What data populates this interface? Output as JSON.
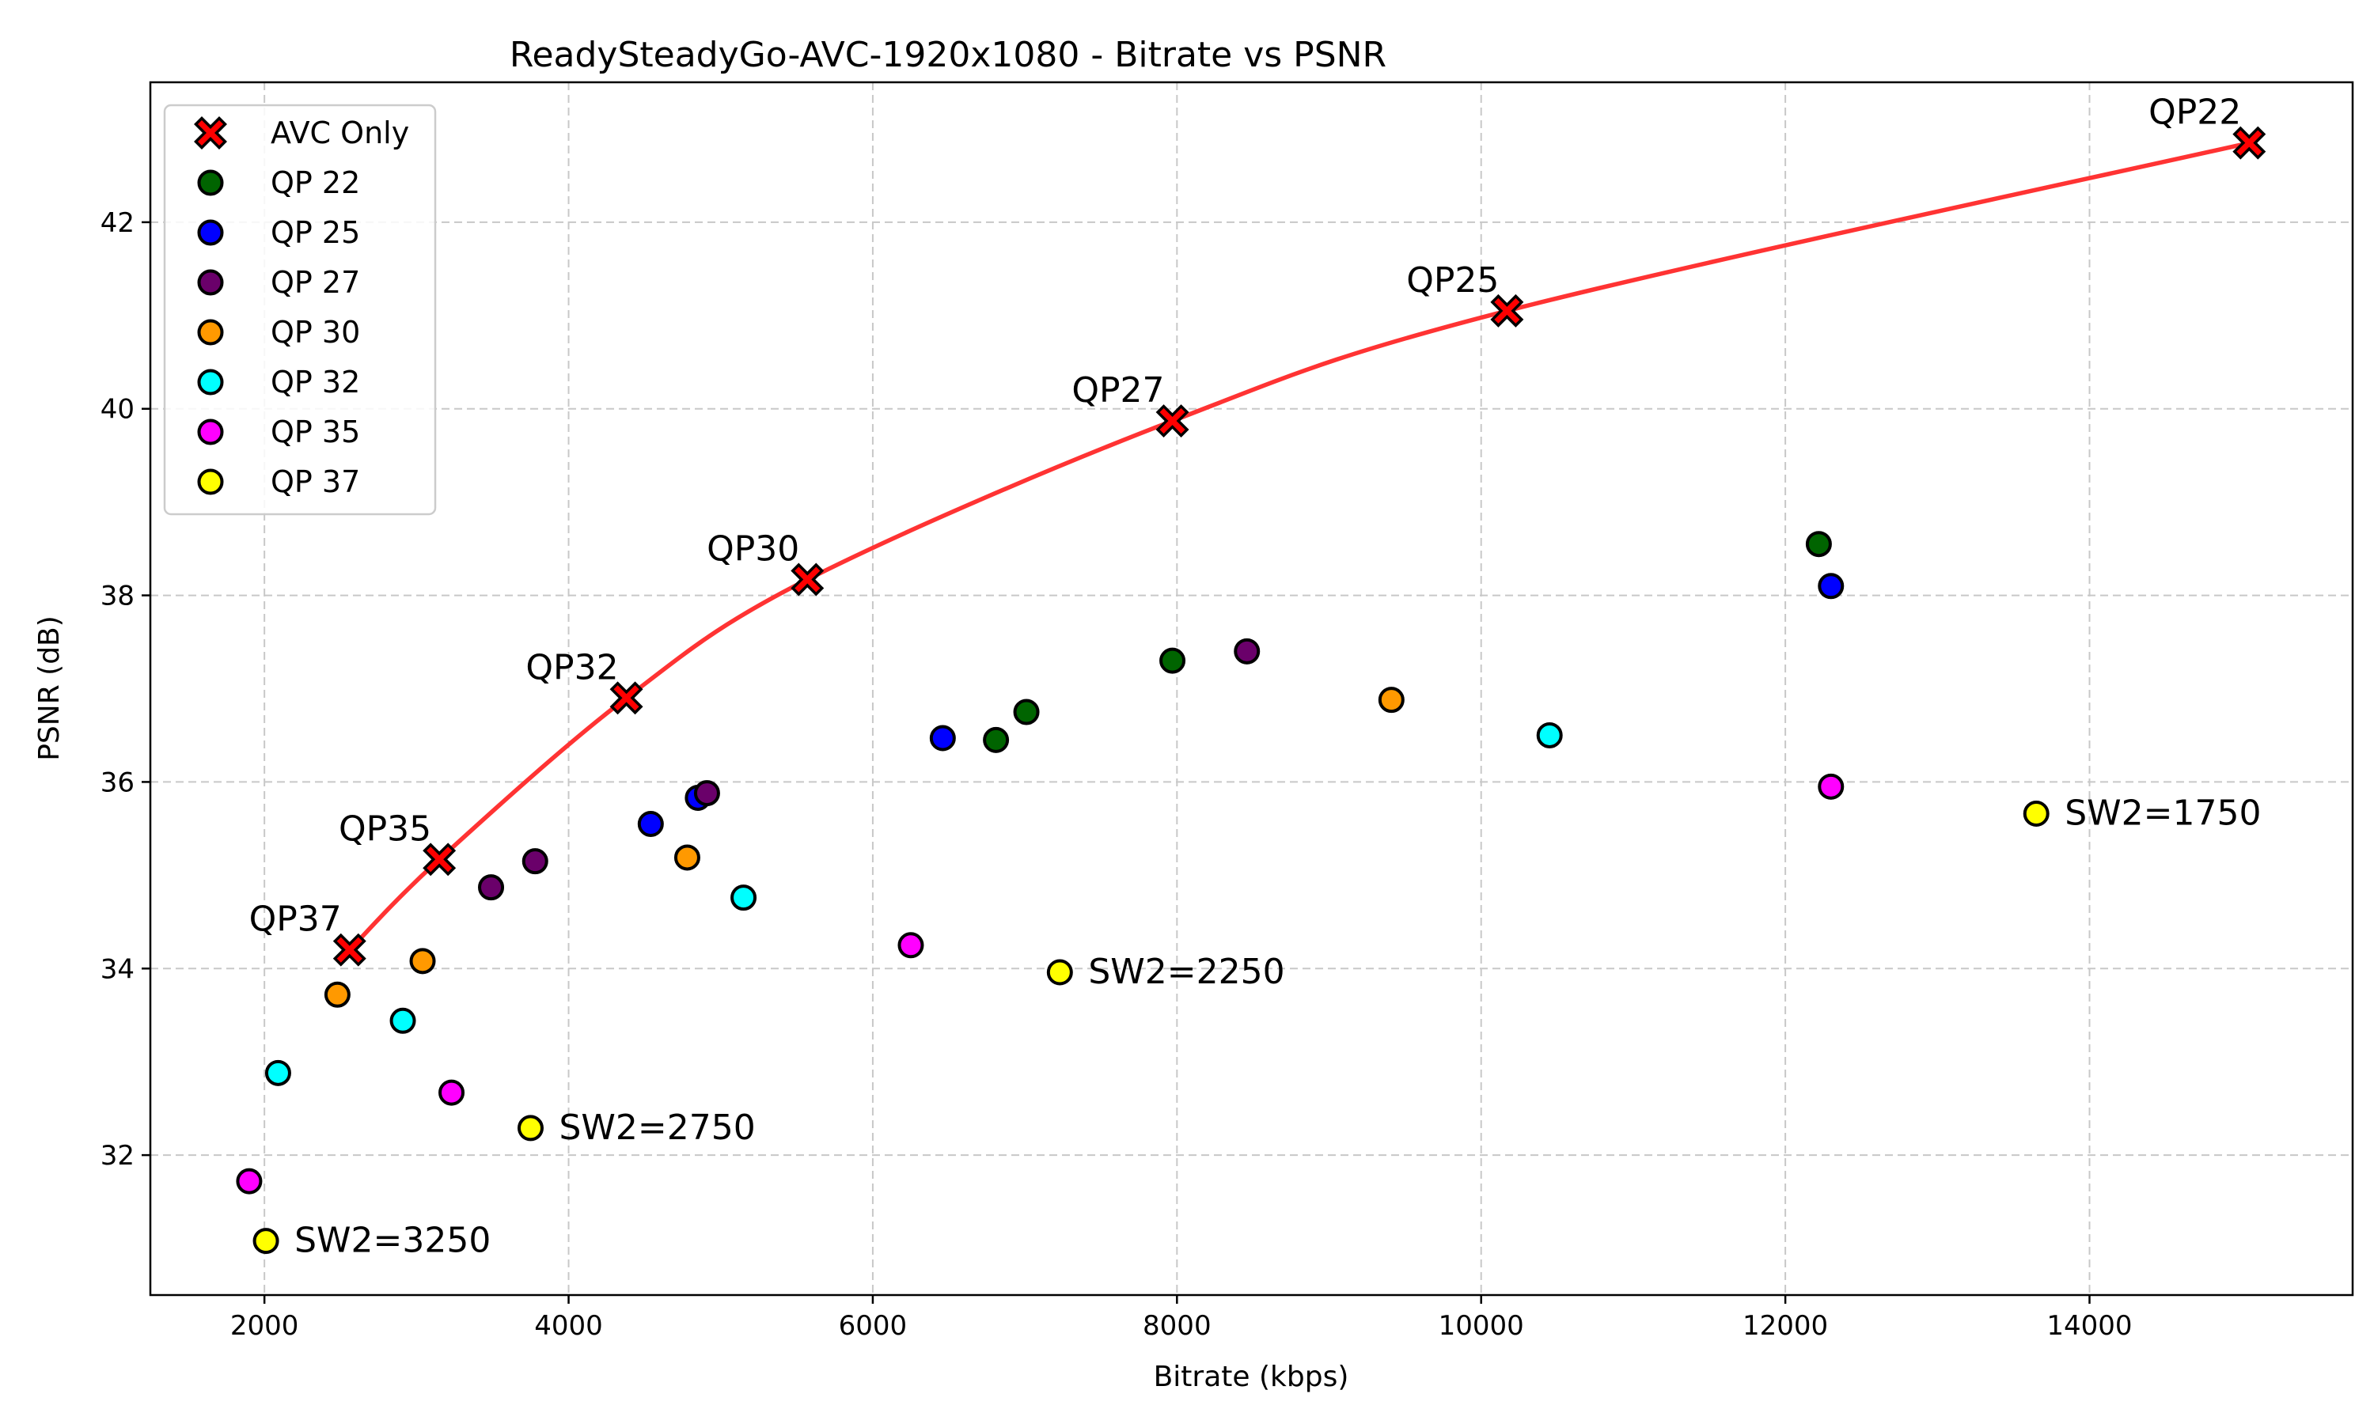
{
  "chart_data": {
    "type": "scatter",
    "title": "ReadySteadyGo-AVC-1920x1080 - Bitrate vs PSNR",
    "xlabel": "Bitrate (kbps)",
    "ylabel": "PSNR (dB)",
    "xlim": [
      1250,
      15730
    ],
    "ylim": [
      30.5,
      43.5
    ],
    "xticks": [
      2000,
      4000,
      6000,
      8000,
      10000,
      12000,
      14000
    ],
    "yticks": [
      32,
      34,
      36,
      38,
      40,
      42
    ],
    "grid": true,
    "legend_position": "top-left",
    "avc_line": {
      "name": "AVC Only",
      "color": "#ff3333",
      "marker_color": "#ff0000",
      "points": [
        {
          "x": 2560,
          "y": 34.2,
          "label": "QP37"
        },
        {
          "x": 3150,
          "y": 35.17,
          "label": "QP35"
        },
        {
          "x": 4380,
          "y": 36.9,
          "label": "QP32"
        },
        {
          "x": 5570,
          "y": 38.17,
          "label": "QP30"
        },
        {
          "x": 7970,
          "y": 39.87,
          "label": "QP27"
        },
        {
          "x": 10170,
          "y": 41.05,
          "label": "QP25"
        },
        {
          "x": 15050,
          "y": 42.85,
          "label": "QP22"
        }
      ]
    },
    "series": [
      {
        "name": "QP 22",
        "color": "#006400",
        "points": [
          {
            "x": 6810,
            "y": 36.45
          },
          {
            "x": 7010,
            "y": 36.75
          },
          {
            "x": 7970,
            "y": 37.3
          },
          {
            "x": 12220,
            "y": 38.55
          }
        ]
      },
      {
        "name": "QP 25",
        "color": "#0000ff",
        "points": [
          {
            "x": 4540,
            "y": 35.55
          },
          {
            "x": 4850,
            "y": 35.83
          },
          {
            "x": 6460,
            "y": 36.47
          },
          {
            "x": 12300,
            "y": 38.1
          }
        ]
      },
      {
        "name": "QP 27",
        "color": "#6a006a",
        "points": [
          {
            "x": 3490,
            "y": 34.87
          },
          {
            "x": 3780,
            "y": 35.15
          },
          {
            "x": 4910,
            "y": 35.88
          },
          {
            "x": 8460,
            "y": 37.4
          }
        ]
      },
      {
        "name": "QP 30",
        "color": "#ff9900",
        "points": [
          {
            "x": 2480,
            "y": 33.72
          },
          {
            "x": 3040,
            "y": 34.08
          },
          {
            "x": 4780,
            "y": 35.19
          },
          {
            "x": 9410,
            "y": 36.88
          }
        ]
      },
      {
        "name": "QP 32",
        "color": "#00ffff",
        "points": [
          {
            "x": 2090,
            "y": 32.88
          },
          {
            "x": 2910,
            "y": 33.44
          },
          {
            "x": 5150,
            "y": 34.76
          },
          {
            "x": 10450,
            "y": 36.5
          }
        ]
      },
      {
        "name": "QP 35",
        "color": "#ff00ff",
        "points": [
          {
            "x": 1900,
            "y": 31.72
          },
          {
            "x": 3230,
            "y": 32.67
          },
          {
            "x": 6250,
            "y": 34.25
          },
          {
            "x": 12300,
            "y": 35.95
          }
        ]
      },
      {
        "name": "QP 37",
        "color": "#ffff00",
        "points": [
          {
            "x": 2010,
            "y": 31.08
          },
          {
            "x": 3750,
            "y": 32.29
          },
          {
            "x": 7230,
            "y": 33.96
          },
          {
            "x": 13650,
            "y": 35.66
          }
        ]
      }
    ],
    "annotations": [
      {
        "text": "SW2=1750",
        "x": 13650,
        "y": 35.66
      },
      {
        "text": "SW2=2250",
        "x": 7230,
        "y": 33.96
      },
      {
        "text": "SW2=2750",
        "x": 3750,
        "y": 32.29
      },
      {
        "text": "SW2=3250",
        "x": 2010,
        "y": 31.08
      }
    ]
  }
}
